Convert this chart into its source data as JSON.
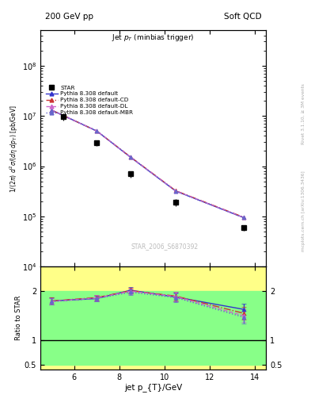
{
  "title_top_left": "200 GeV pp",
  "title_top_right": "Soft QCD",
  "main_title": "Jet p_{T} (minbias trigger)",
  "xlabel": "jet p_{T}/GeV",
  "ylabel_main": "1/(2π) d²σ/(dη dp_{T}) [pb/GeV]",
  "ylabel_ratio": "Ratio to STAR",
  "right_label_top": "Rivet 3.1.10, ≥ 3M events",
  "right_label_bottom": "mcplots.cern.ch [arXiv:1306.3436]",
  "watermark": "STAR_2006_S6870392",
  "star_x": [
    5.5,
    7.0,
    8.5,
    10.5,
    13.5
  ],
  "star_y": [
    9700000,
    2900000,
    700000,
    190000,
    60000
  ],
  "star_yerr_lo": [
    1500000,
    400000,
    100000,
    30000,
    8000
  ],
  "star_yerr_hi": [
    1500000,
    400000,
    100000,
    30000,
    8000
  ],
  "pythia_x": [
    5.0,
    7.0,
    8.5,
    10.5,
    13.5
  ],
  "py_default_y": [
    13000000,
    5000000,
    1500000,
    320000,
    95000
  ],
  "py_default_color": "#3333cc",
  "py_default_label": "Pythia 8.308 default",
  "py_cd_y": [
    13000000,
    5000000,
    1520000,
    325000,
    97000
  ],
  "py_cd_color": "#cc3333",
  "py_cd_label": "Pythia 8.308 default-CD",
  "py_dl_y": [
    13000000,
    5000000,
    1510000,
    322000,
    96000
  ],
  "py_dl_color": "#cc66cc",
  "py_dl_label": "Pythia 8.308 default-DL",
  "py_mbr_y": [
    13000000,
    5000000,
    1505000,
    320000,
    95500
  ],
  "py_mbr_color": "#6666cc",
  "py_mbr_label": "Pythia 8.308 default-MBR",
  "ratio_x": [
    5.0,
    7.0,
    8.5,
    10.5,
    13.5
  ],
  "ratio_default_y": [
    1.8,
    1.85,
    2.02,
    1.88,
    1.63
  ],
  "ratio_default_yerr": [
    0.07,
    0.06,
    0.06,
    0.09,
    0.12
  ],
  "ratio_cd_y": [
    1.8,
    1.87,
    2.01,
    1.9,
    1.55
  ],
  "ratio_cd_yerr": [
    0.07,
    0.06,
    0.06,
    0.09,
    0.13
  ],
  "ratio_dl_y": [
    1.79,
    1.86,
    2.0,
    1.89,
    1.5
  ],
  "ratio_dl_yerr": [
    0.07,
    0.06,
    0.06,
    0.09,
    0.13
  ],
  "ratio_mbr_y": [
    1.79,
    1.85,
    1.98,
    1.87,
    1.47
  ],
  "ratio_mbr_yerr": [
    0.07,
    0.06,
    0.06,
    0.09,
    0.13
  ],
  "xlim": [
    4.5,
    14.5
  ],
  "ylim_main": [
    10000.0,
    500000000.0
  ],
  "ylim_ratio": [
    0.4,
    2.5
  ],
  "background_color": "#ffffff",
  "yellow_color": "#ffff88",
  "green_color": "#88ff88",
  "gray_text": "#aaaaaa"
}
